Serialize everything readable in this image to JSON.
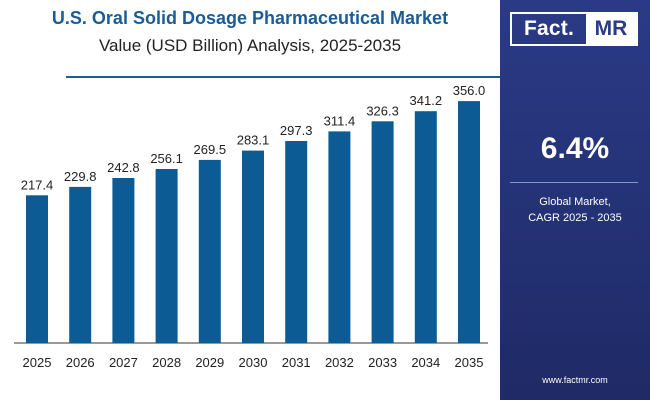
{
  "chart_data": {
    "type": "bar",
    "title": "U.S. Oral Solid Dosage Pharmaceutical Market",
    "subtitle": "Value (USD Billion) Analysis, 2025-2035",
    "categories": [
      "2025",
      "2026",
      "2027",
      "2028",
      "2029",
      "2030",
      "2031",
      "2032",
      "2033",
      "2034",
      "2035"
    ],
    "values": [
      217.4,
      229.8,
      242.8,
      256.1,
      269.5,
      283.1,
      297.3,
      311.4,
      326.3,
      341.2,
      356.0
    ],
    "data_labels": [
      "217.4",
      "229.8",
      "242.8",
      "256.1",
      "269.5",
      "283.1",
      "297.3",
      "311.4",
      "326.3",
      "341.2",
      "356.0"
    ],
    "ylim": [
      0,
      390
    ],
    "grid": false,
    "legend": "none",
    "bar_color": "#0d5b94"
  },
  "side_panel": {
    "logo_left": "Fact.",
    "logo_right": "MR",
    "cagr_value": "6.4%",
    "cagr_line1": "Global Market,",
    "cagr_line2": "CAGR 2025 - 2035",
    "website": "www.factmr.com",
    "panel_color": "#2a3a86"
  }
}
